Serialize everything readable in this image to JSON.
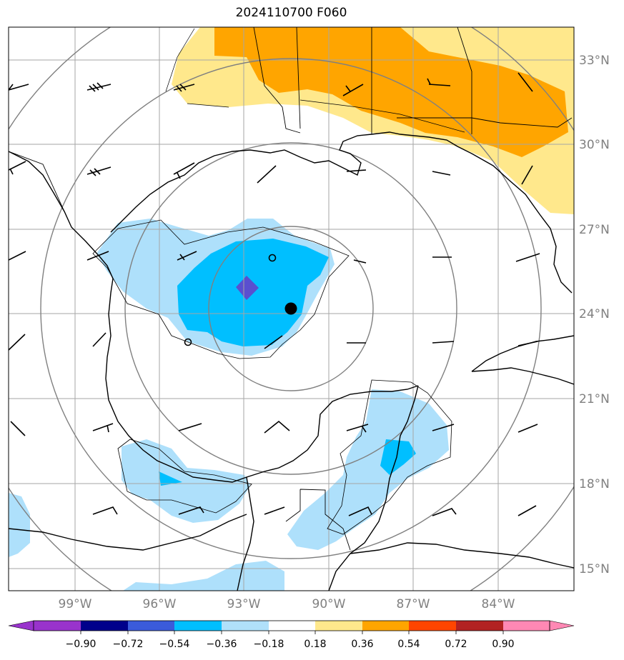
{
  "title": "2024110700 F060",
  "lat_labels": [
    "33°N",
    "30°N",
    "27°N",
    "24°N",
    "21°N",
    "18°N",
    "15°N"
  ],
  "lon_labels": [
    "99°W",
    "96°W",
    "93°W",
    "90°W",
    "87°W",
    "84°W"
  ],
  "colorbar": {
    "tick_labels": [
      "−0.90",
      "−0.72",
      "−0.54",
      "−0.36",
      "−0.18",
      "0.18",
      "0.36",
      "0.54",
      "0.72",
      "0.90"
    ],
    "colors": [
      "#9933cc",
      "#00008b",
      "#3b5bdb",
      "#00bfff",
      "#b0e0fa",
      "#ffffff",
      "#ffe88c",
      "#ffa500",
      "#ff4500",
      "#b22222",
      "#ff88b4"
    ]
  },
  "fill_colors": {
    "light_blue": "#aee0fb",
    "blue": "#00bfff",
    "purple": "#5a4fcf",
    "yellow": "#ffe88c",
    "orange": "#ffa500"
  },
  "markers": {
    "center": "filled-circle",
    "other": [
      "open-circle",
      "open-circle"
    ]
  }
}
